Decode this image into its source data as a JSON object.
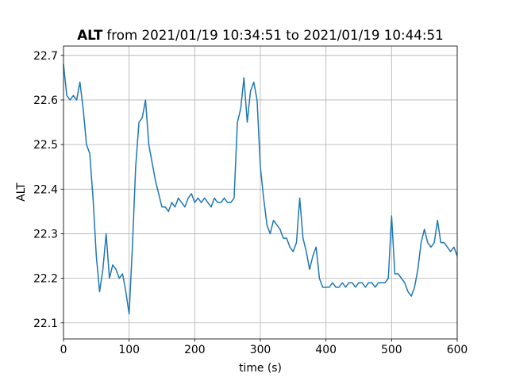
{
  "chart_data": {
    "type": "line",
    "title": {
      "variable": "ALT",
      "text": "from 2021/01/19 10:34:51 to 2021/01/19 10:44:51"
    },
    "xlabel": "time (s)",
    "ylabel": "ALT",
    "color": "#1f77b4",
    "grid": true,
    "xlim": [
      0,
      600
    ],
    "xticks": [
      0,
      100,
      200,
      300,
      400,
      500,
      600
    ],
    "ylim": [
      22.064,
      22.721
    ],
    "yticks": [
      22.1,
      22.2,
      22.3,
      22.4,
      22.5,
      22.6,
      22.7
    ],
    "x": [
      0,
      5,
      10,
      15,
      20,
      25,
      30,
      35,
      40,
      45,
      50,
      55,
      60,
      65,
      70,
      75,
      80,
      85,
      90,
      95,
      100,
      105,
      110,
      115,
      120,
      125,
      130,
      135,
      140,
      145,
      150,
      155,
      160,
      165,
      170,
      175,
      180,
      185,
      190,
      195,
      200,
      205,
      210,
      215,
      220,
      225,
      230,
      235,
      240,
      245,
      250,
      255,
      260,
      265,
      270,
      275,
      280,
      285,
      290,
      295,
      300,
      305,
      310,
      315,
      320,
      325,
      330,
      335,
      340,
      345,
      350,
      355,
      360,
      365,
      370,
      375,
      380,
      385,
      390,
      395,
      400,
      405,
      410,
      415,
      420,
      425,
      430,
      435,
      440,
      445,
      450,
      455,
      460,
      465,
      470,
      475,
      480,
      485,
      490,
      495,
      500,
      505,
      510,
      515,
      520,
      525,
      530,
      535,
      540,
      545,
      550,
      555,
      560,
      565,
      570,
      575,
      580,
      585,
      590,
      595,
      600
    ],
    "values": [
      22.68,
      22.61,
      22.6,
      22.61,
      22.6,
      22.64,
      22.58,
      22.5,
      22.48,
      22.38,
      22.25,
      22.17,
      22.22,
      22.3,
      22.2,
      22.23,
      22.22,
      22.2,
      22.21,
      22.17,
      22.12,
      22.27,
      22.45,
      22.55,
      22.56,
      22.6,
      22.5,
      22.46,
      22.42,
      22.39,
      22.36,
      22.36,
      22.35,
      22.37,
      22.36,
      22.38,
      22.37,
      22.36,
      22.38,
      22.39,
      22.37,
      22.38,
      22.37,
      22.38,
      22.37,
      22.36,
      22.38,
      22.37,
      22.37,
      22.38,
      22.37,
      22.37,
      22.38,
      22.55,
      22.58,
      22.65,
      22.55,
      22.62,
      22.64,
      22.6,
      22.45,
      22.38,
      22.32,
      22.3,
      22.33,
      22.32,
      22.31,
      22.29,
      22.29,
      22.27,
      22.26,
      22.28,
      22.38,
      22.29,
      22.26,
      22.22,
      22.25,
      22.27,
      22.2,
      22.18,
      22.18,
      22.18,
      22.19,
      22.18,
      22.18,
      22.19,
      22.18,
      22.19,
      22.19,
      22.18,
      22.19,
      22.19,
      22.18,
      22.19,
      22.19,
      22.18,
      22.19,
      22.19,
      22.19,
      22.2,
      22.34,
      22.21,
      22.21,
      22.2,
      22.19,
      22.17,
      22.16,
      22.18,
      22.22,
      22.28,
      22.31,
      22.28,
      22.27,
      22.28,
      22.33,
      22.28,
      22.28,
      22.27,
      22.26,
      22.27,
      22.25
    ]
  }
}
